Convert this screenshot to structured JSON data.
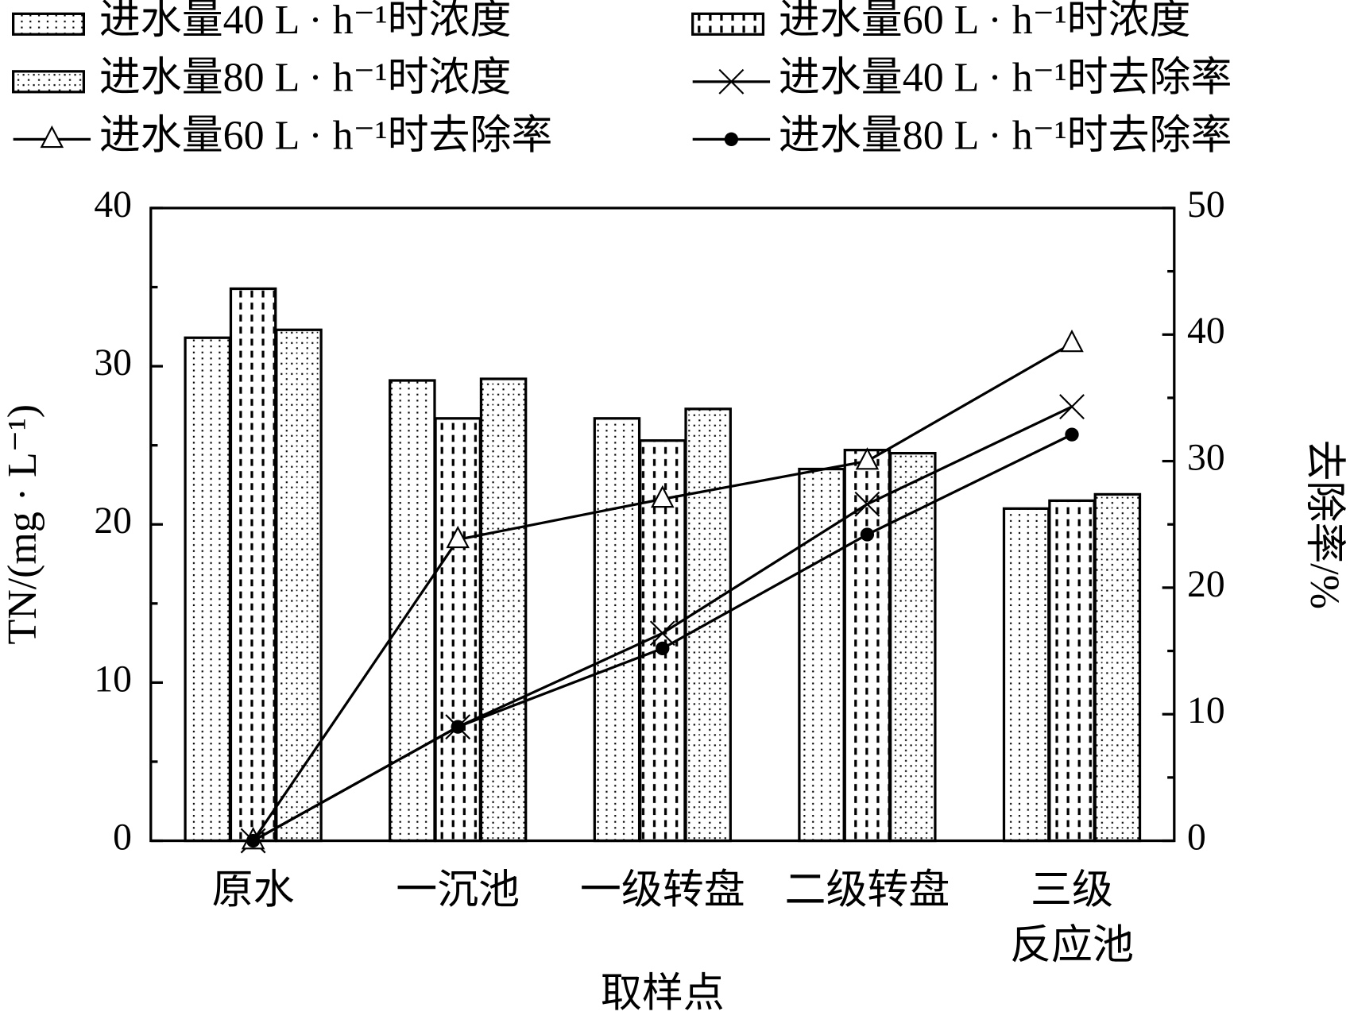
{
  "chart_data": {
    "type": "bar_line",
    "categories": [
      "原水",
      "一沉池",
      "一级转盘",
      "二级转盘",
      "三级\n反应池"
    ],
    "series": [
      {
        "name": "进水量40 L · h⁻¹时浓度",
        "type": "bar",
        "pattern": "dots",
        "color": "#000000",
        "values": [
          31.8,
          29.1,
          26.7,
          23.5,
          21.0
        ]
      },
      {
        "name": "进水量60 L · h⁻¹时浓度",
        "type": "bar",
        "pattern": "dashes",
        "color": "#000000",
        "values": [
          34.9,
          26.7,
          25.3,
          24.7,
          21.5
        ]
      },
      {
        "name": "进水量80 L · h⁻¹时浓度",
        "type": "bar",
        "pattern": "checks",
        "color": "#000000",
        "values": [
          32.3,
          29.2,
          27.3,
          24.5,
          21.9
        ]
      },
      {
        "name": "进水量40 L · h⁻¹时去除率",
        "type": "line",
        "marker": "x",
        "axis": "y2",
        "color": "#000000",
        "values": [
          0,
          9.0,
          16.4,
          26.6,
          34.3
        ]
      },
      {
        "name": "进水量60 L · h⁻¹时去除率",
        "type": "line",
        "marker": "triangle",
        "axis": "y2",
        "color": "#000000",
        "values": [
          0,
          23.8,
          27.0,
          30.0,
          39.3
        ]
      },
      {
        "name": "进水量80 L · h⁻¹时去除率",
        "type": "line",
        "marker": "circle",
        "axis": "y2",
        "color": "#000000",
        "values": [
          0,
          9.0,
          15.2,
          24.2,
          32.1
        ]
      }
    ],
    "x_label": "取样点",
    "y_label": "TN/(mg · L⁻¹)",
    "y2_label": "去除率/%",
    "ylim": [
      0,
      40
    ],
    "yticks": [
      0,
      10,
      20,
      30,
      40
    ],
    "y2lim": [
      0,
      50
    ],
    "y2ticks": [
      0,
      10,
      20,
      30,
      40,
      50
    ],
    "legend": "top"
  }
}
